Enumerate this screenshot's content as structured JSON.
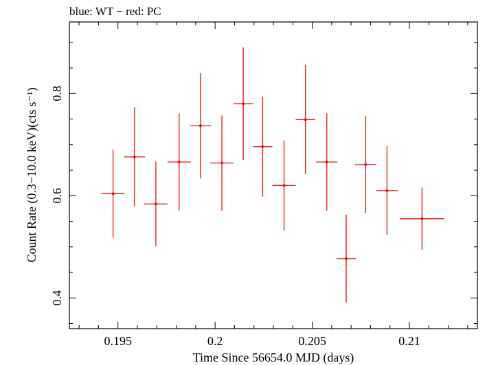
{
  "chart_data": {
    "type": "scatter",
    "title": "blue: WT − red: PC",
    "xlabel": "Time Since 56654.0 MJD (days)",
    "ylabel": "Count Rate (0.3−10.0 keV)(cts s⁻¹)",
    "xlim": [
      0.1925,
      0.2135
    ],
    "ylim": [
      0.34,
      0.94
    ],
    "xticks": [
      0.195,
      0.2,
      0.205,
      0.21
    ],
    "xtick_labels": [
      "0.195",
      "0.2",
      "0.205",
      "0.21"
    ],
    "yticks": [
      0.4,
      0.6,
      0.8
    ],
    "ytick_labels": [
      "0.4",
      "0.6",
      "0.8"
    ],
    "grid": false,
    "series": [
      {
        "color": "#ee1111",
        "points": [
          {
            "x": 0.19475,
            "xerr": 0.0006,
            "y": 0.604,
            "yerr_lo": 0.086,
            "yerr_hi": 0.086
          },
          {
            "x": 0.19585,
            "xerr": 0.00055,
            "y": 0.676,
            "yerr_lo": 0.097,
            "yerr_hi": 0.097
          },
          {
            "x": 0.19695,
            "xerr": 0.0006,
            "y": 0.584,
            "yerr_lo": 0.083,
            "yerr_hi": 0.083
          },
          {
            "x": 0.19815,
            "xerr": 0.0006,
            "y": 0.666,
            "yerr_lo": 0.095,
            "yerr_hi": 0.095
          },
          {
            "x": 0.19925,
            "xerr": 0.00055,
            "y": 0.737,
            "yerr_lo": 0.103,
            "yerr_hi": 0.103
          },
          {
            "x": 0.20035,
            "xerr": 0.0006,
            "y": 0.664,
            "yerr_lo": 0.093,
            "yerr_hi": 0.093
          },
          {
            "x": 0.20145,
            "xerr": 0.0005,
            "y": 0.78,
            "yerr_lo": 0.11,
            "yerr_hi": 0.11
          },
          {
            "x": 0.20245,
            "xerr": 0.0005,
            "y": 0.696,
            "yerr_lo": 0.098,
            "yerr_hi": 0.098
          },
          {
            "x": 0.20355,
            "xerr": 0.0006,
            "y": 0.62,
            "yerr_lo": 0.088,
            "yerr_hi": 0.088
          },
          {
            "x": 0.20465,
            "xerr": 0.0005,
            "y": 0.749,
            "yerr_lo": 0.107,
            "yerr_hi": 0.107
          },
          {
            "x": 0.20575,
            "xerr": 0.00055,
            "y": 0.666,
            "yerr_lo": 0.095,
            "yerr_hi": 0.095
          },
          {
            "x": 0.20675,
            "xerr": 0.0005,
            "y": 0.477,
            "yerr_lo": 0.086,
            "yerr_hi": 0.086
          },
          {
            "x": 0.20775,
            "xerr": 0.00055,
            "y": 0.661,
            "yerr_lo": 0.095,
            "yerr_hi": 0.095
          },
          {
            "x": 0.20885,
            "xerr": 0.00055,
            "y": 0.61,
            "yerr_lo": 0.087,
            "yerr_hi": 0.087
          },
          {
            "x": 0.21065,
            "xerr": 0.00115,
            "y": 0.555,
            "yerr_lo": 0.061,
            "yerr_hi": 0.061
          }
        ]
      }
    ]
  }
}
